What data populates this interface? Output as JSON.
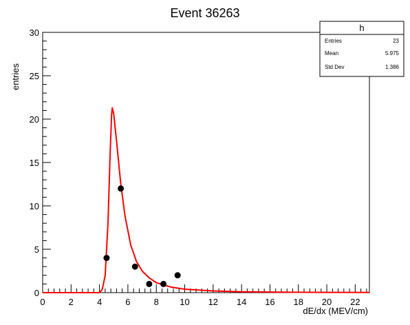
{
  "chart_data": {
    "type": "scatter",
    "title": "Event 36263",
    "xlabel": "dE/dx (MEV/cm)",
    "ylabel": "entries",
    "xlim": [
      0,
      23
    ],
    "ylim": [
      0,
      30
    ],
    "x_ticks": [
      0,
      2,
      4,
      6,
      8,
      10,
      12,
      14,
      16,
      18,
      20,
      22
    ],
    "y_ticks": [
      0,
      5,
      10,
      15,
      20,
      25,
      30
    ],
    "grid": false,
    "series": [
      {
        "kind": "points",
        "color": "#000000",
        "points": [
          {
            "x": 4.5,
            "y": 4
          },
          {
            "x": 5.5,
            "y": 12
          },
          {
            "x": 6.5,
            "y": 3
          },
          {
            "x": 7.5,
            "y": 1
          },
          {
            "x": 8.5,
            "y": 1
          },
          {
            "x": 9.5,
            "y": 2
          }
        ]
      },
      {
        "kind": "fit-curve",
        "color": "#ff0000",
        "points": [
          {
            "x": 0,
            "y": 0
          },
          {
            "x": 4.0,
            "y": 0
          },
          {
            "x": 4.2,
            "y": 0.4
          },
          {
            "x": 4.4,
            "y": 2.0
          },
          {
            "x": 4.6,
            "y": 8.0
          },
          {
            "x": 4.75,
            "y": 16.0
          },
          {
            "x": 4.85,
            "y": 20.5
          },
          {
            "x": 4.9,
            "y": 21.3
          },
          {
            "x": 5.0,
            "y": 20.6
          },
          {
            "x": 5.2,
            "y": 17.5
          },
          {
            "x": 5.5,
            "y": 12.5
          },
          {
            "x": 5.8,
            "y": 8.8
          },
          {
            "x": 6.2,
            "y": 5.5
          },
          {
            "x": 6.6,
            "y": 3.6
          },
          {
            "x": 7.0,
            "y": 2.5
          },
          {
            "x": 7.5,
            "y": 1.7
          },
          {
            "x": 8.0,
            "y": 1.15
          },
          {
            "x": 9.0,
            "y": 0.65
          },
          {
            "x": 10.0,
            "y": 0.4
          },
          {
            "x": 12.0,
            "y": 0.2
          },
          {
            "x": 14.0,
            "y": 0.1
          },
          {
            "x": 17.0,
            "y": 0.05
          },
          {
            "x": 20.0,
            "y": 0.03
          },
          {
            "x": 23.0,
            "y": 0.02
          }
        ]
      }
    ]
  },
  "stats_box": {
    "name": "h",
    "rows": [
      {
        "label": "Entries",
        "value": "23"
      },
      {
        "label": "Mean",
        "value": "5.975"
      },
      {
        "label": "Std Dev",
        "value": "1.386"
      }
    ]
  }
}
